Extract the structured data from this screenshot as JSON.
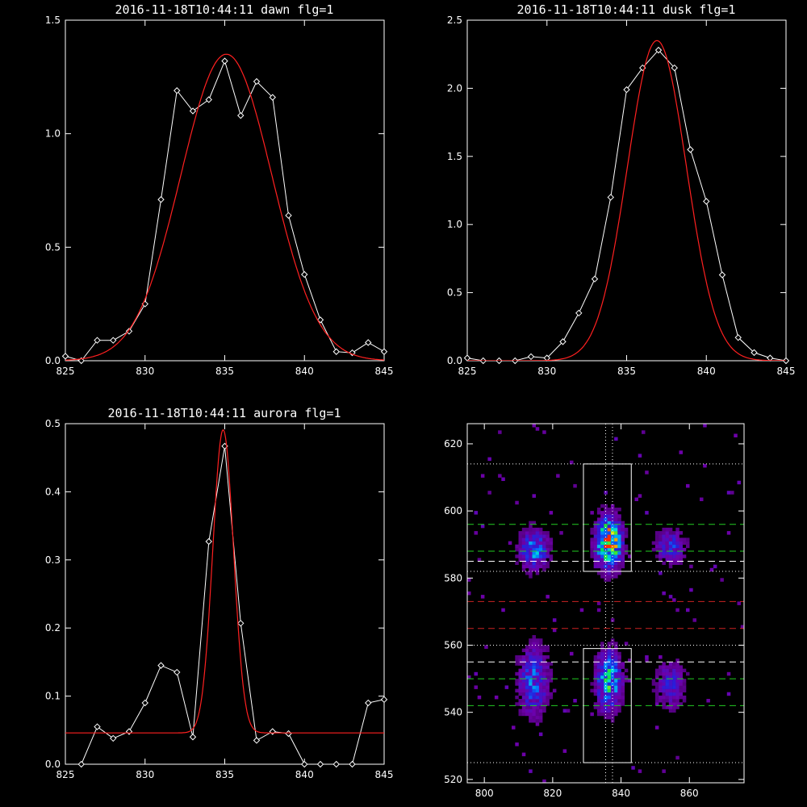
{
  "chart_data": [
    {
      "type": "line",
      "title": "2016-11-18T10:44:11 dawn flg=1",
      "xlim": [
        825,
        845
      ],
      "ylim": [
        0,
        1.5
      ],
      "xticks": [
        "825",
        "830",
        "835",
        "840",
        "845"
      ],
      "yticks": [
        "0.0",
        "0.5",
        "1.0",
        "1.5"
      ],
      "series": [
        {
          "color": "#ffffff",
          "markers": "diamond",
          "x": [
            825,
            826,
            827,
            828,
            829,
            830,
            831,
            832,
            833,
            834,
            835,
            836,
            837,
            838,
            839,
            840,
            841,
            842,
            843,
            844,
            845
          ],
          "y": [
            0.02,
            0.0,
            0.09,
            0.09,
            0.13,
            0.25,
            0.71,
            1.19,
            1.1,
            1.15,
            1.32,
            1.08,
            1.23,
            1.16,
            0.64,
            0.38,
            0.18,
            0.04,
            0.035,
            0.08,
            0.04
          ]
        },
        {
          "color": "#ff2020",
          "markers": "none",
          "curve": "gaussian",
          "amplitude": 1.35,
          "center": 835.1,
          "sigma": 2.85,
          "offset": 0.0
        }
      ]
    },
    {
      "type": "line",
      "title": "2016-11-18T10:44:11 dusk flg=1",
      "xlim": [
        825,
        845
      ],
      "ylim": [
        0,
        2.5
      ],
      "xticks": [
        "825",
        "830",
        "835",
        "840",
        "845"
      ],
      "yticks": [
        "0.0",
        "0.5",
        "1.0",
        "1.5",
        "2.0",
        "2.5"
      ],
      "series": [
        {
          "color": "#ffffff",
          "markers": "diamond",
          "x": [
            825,
            826,
            827,
            828,
            829,
            830,
            831,
            832,
            833,
            834,
            835,
            836,
            837,
            838,
            839,
            840,
            841,
            842,
            843,
            844,
            845
          ],
          "y": [
            0.02,
            0.0,
            0.0,
            0.0,
            0.03,
            0.02,
            0.14,
            0.35,
            0.6,
            1.2,
            1.99,
            2.15,
            2.28,
            2.15,
            1.55,
            1.17,
            0.63,
            0.17,
            0.06,
            0.02,
            0.0
          ]
        },
        {
          "color": "#ff2020",
          "markers": "none",
          "curve": "gaussian",
          "amplitude": 2.35,
          "center": 836.9,
          "sigma": 1.85,
          "offset": 0.0
        }
      ]
    },
    {
      "type": "line",
      "title": "2016-11-18T10:44:11 aurora flg=1",
      "xlim": [
        825,
        845
      ],
      "ylim": [
        0,
        0.5
      ],
      "xticks": [
        "825",
        "830",
        "835",
        "840",
        "845"
      ],
      "yticks": [
        "0.0",
        "0.1",
        "0.2",
        "0.3",
        "0.4",
        "0.5"
      ],
      "series": [
        {
          "color": "#ffffff",
          "markers": "diamond",
          "x": [
            826,
            827,
            828,
            829,
            830,
            831,
            832,
            833,
            834,
            835,
            836,
            837,
            838,
            839,
            840,
            841,
            842,
            843,
            844,
            845
          ],
          "y": [
            0.0,
            0.055,
            0.038,
            0.048,
            0.09,
            0.145,
            0.135,
            0.04,
            0.327,
            0.467,
            0.207,
            0.035,
            0.048,
            0.045,
            0.0,
            0.0,
            0.0,
            0.0,
            0.09,
            0.095
          ]
        },
        {
          "color": "#ff2020",
          "markers": "none",
          "curve": "gaussian",
          "amplitude": 0.445,
          "center": 834.9,
          "sigma": 0.65,
          "offset": 0.046
        }
      ]
    },
    {
      "type": "heatmap",
      "xlim": [
        795,
        876
      ],
      "ylim": [
        519,
        626
      ],
      "xticks": [
        "800",
        "820",
        "840",
        "860"
      ],
      "yticks": [
        "520",
        "540",
        "560",
        "580",
        "600",
        "620"
      ],
      "blobs": [
        {
          "x": 836,
          "y": 590,
          "sx": 2.5,
          "sy": 5,
          "peak": 1.0
        },
        {
          "x": 836,
          "y": 549,
          "sx": 2.5,
          "sy": 6,
          "peak": 0.65
        },
        {
          "x": 814,
          "y": 588,
          "sx": 3,
          "sy": 4,
          "peak": 0.5
        },
        {
          "x": 814,
          "y": 549,
          "sx": 3,
          "sy": 7,
          "peak": 0.45
        },
        {
          "x": 854,
          "y": 589,
          "sx": 3,
          "sy": 3.5,
          "peak": 0.35
        },
        {
          "x": 854,
          "y": 548,
          "sx": 3,
          "sy": 5,
          "peak": 0.3
        }
      ],
      "boxes": [
        {
          "x0": 829,
          "x1": 843,
          "y0": 582,
          "y1": 614,
          "color": "#ffffff"
        },
        {
          "x0": 829,
          "x1": 843,
          "y0": 525,
          "y1": 559,
          "color": "#ffffff"
        }
      ],
      "dotted_hlines": [
        {
          "y": 614,
          "color": "#ffffff"
        },
        {
          "y": 582,
          "color": "#ffffff"
        },
        {
          "y": 560,
          "color": "#ffffff"
        },
        {
          "y": 525,
          "color": "#ffffff"
        }
      ],
      "dotted_vlines": [
        {
          "x": 835.5,
          "color": "#ffffff"
        },
        {
          "x": 837.5,
          "color": "#ffffff"
        }
      ],
      "dashed_hlines": [
        {
          "y": 596,
          "color": "#22cc22"
        },
        {
          "y": 588,
          "color": "#22cc22"
        },
        {
          "y": 585,
          "color": "#ffffff"
        },
        {
          "y": 573,
          "color": "#cc2222"
        },
        {
          "y": 565,
          "color": "#cc2222"
        },
        {
          "y": 555,
          "color": "#ffffff"
        },
        {
          "y": 550,
          "color": "#22cc22"
        },
        {
          "y": 542,
          "color": "#22cc22"
        }
      ]
    }
  ]
}
